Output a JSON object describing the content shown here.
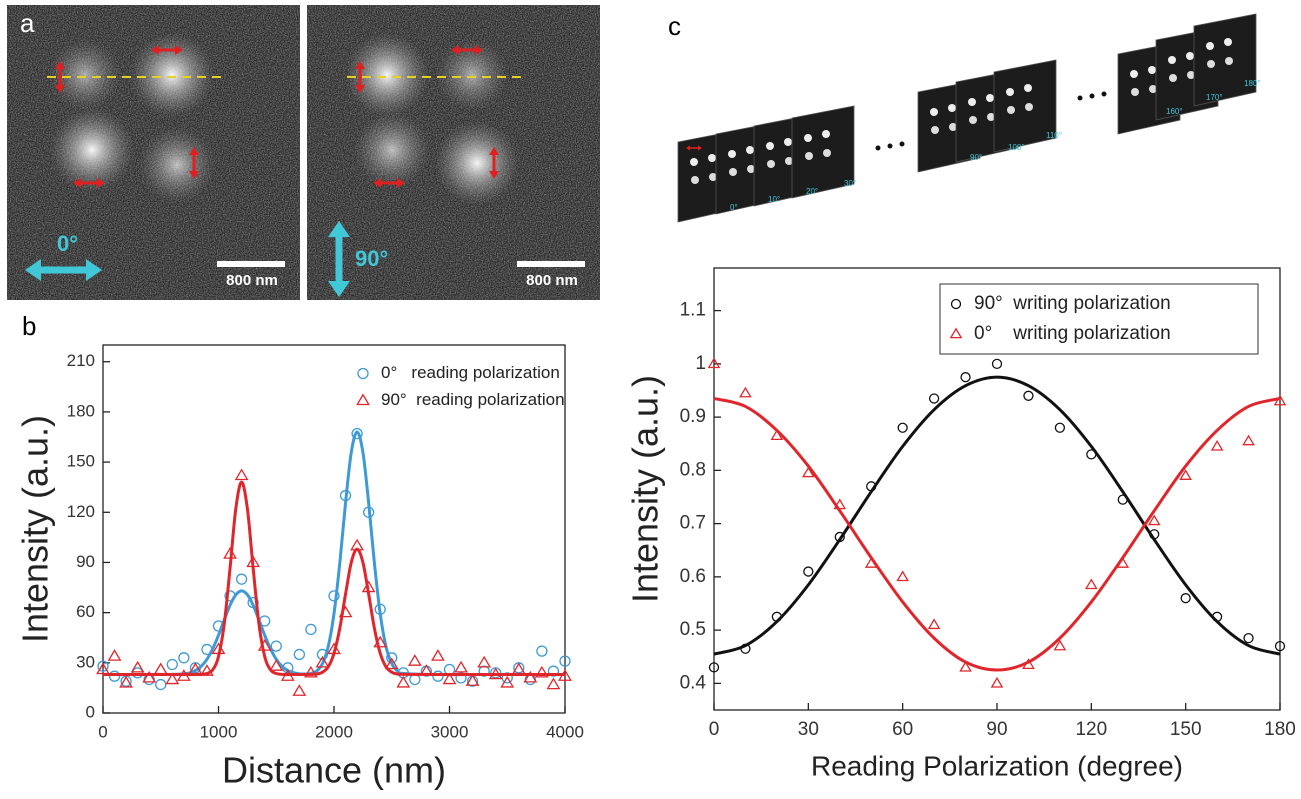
{
  "panels": [
    "a",
    "b",
    "c"
  ],
  "images": [
    {
      "angle": "0°",
      "scale": "800 nm"
    },
    {
      "angle": "90°",
      "scale": "800 nm"
    }
  ],
  "frames": [
    "0°",
    "10°",
    "20°",
    "30°",
    "90°",
    "100°",
    "110°",
    "160°",
    "170°",
    "180°"
  ],
  "chart_data": [
    {
      "type": "scatter",
      "xlabel": "Distance (nm)",
      "ylabel": "Intensity (a.u.)",
      "xlim": [
        0,
        4000
      ],
      "xticks": [
        0,
        1000,
        2000,
        3000,
        4000
      ],
      "ylim": [
        0,
        220
      ],
      "yticks": [
        0,
        30,
        60,
        90,
        120,
        150,
        180,
        210
      ],
      "legend": "upper right",
      "series": [
        {
          "name": "0°   reading polarization",
          "color": "#3d9ad6",
          "marker": "circle",
          "x": [
            0,
            100,
            200,
            300,
            400,
            500,
            600,
            700,
            800,
            900,
            1000,
            1100,
            1200,
            1300,
            1400,
            1500,
            1600,
            1700,
            1800,
            1900,
            2000,
            2100,
            2200,
            2300,
            2400,
            2500,
            2600,
            2700,
            2800,
            2900,
            3000,
            3100,
            3200,
            3300,
            3400,
            3500,
            3600,
            3700,
            3800,
            3900,
            4000
          ],
          "values": [
            28,
            22,
            19,
            24,
            20,
            17,
            29,
            33,
            27,
            38,
            52,
            70,
            80,
            66,
            55,
            40,
            27,
            35,
            50,
            35,
            70,
            130,
            167,
            120,
            62,
            33,
            24,
            20,
            25,
            22,
            26,
            21,
            19,
            25,
            24,
            21,
            27,
            20,
            37,
            25,
            31
          ],
          "fit": {
            "x": [
              0,
              400,
              700,
              800,
              850,
              900,
              950,
              1000,
              1050,
              1100,
              1150,
              1200,
              1250,
              1300,
              1350,
              1400,
              1450,
              1500,
              1550,
              1600,
              1650,
              1700,
              1750,
              1800,
              1850,
              1900,
              1950,
              2000,
              2050,
              2100,
              2150,
              2200,
              2250,
              2300,
              2350,
              2400,
              2450,
              2500,
              2550,
              2600,
              2900,
              3300,
              4000
            ],
            "values": [
              23,
              23,
              23.4,
              25.4,
              27.9,
              32.1,
              38.4,
              46.5,
              55.7,
              64.4,
              70.7,
              73,
              70.7,
              64.4,
              55.7,
              46.5,
              38.4,
              32.1,
              27.9,
              25.4,
              24.1,
              23.4,
              23.3,
              23.6,
              25.1,
              29.5,
              39.7,
              59.4,
              89.5,
              125.6,
              156,
              168,
              156,
              125.6,
              89.5,
              59.4,
              39.7,
              29.5,
              25.1,
              23.6,
              23,
              23,
              23
            ]
          }
        },
        {
          "name": "90°  reading polarization",
          "color": "#e0262b",
          "marker": "triangle",
          "x": [
            0,
            100,
            200,
            300,
            400,
            500,
            600,
            700,
            800,
            900,
            1000,
            1100,
            1200,
            1300,
            1400,
            1500,
            1600,
            1700,
            1800,
            1900,
            2000,
            2100,
            2200,
            2300,
            2400,
            2500,
            2600,
            2700,
            2800,
            2900,
            3000,
            3100,
            3200,
            3300,
            3400,
            3500,
            3600,
            3700,
            3800,
            3900,
            4000
          ],
          "values": [
            26,
            34,
            18,
            27,
            21,
            26,
            20,
            22,
            26,
            25,
            38,
            95,
            142,
            90,
            40,
            28,
            22,
            13,
            24,
            30,
            38,
            60,
            100,
            75,
            42,
            29,
            18,
            31,
            25,
            34,
            20,
            27,
            19,
            30,
            23,
            18,
            26,
            21,
            24,
            17,
            22
          ],
          "fit": {
            "x": [
              0,
              400,
              700,
              800,
              850,
              900,
              950,
              1000,
              1050,
              1100,
              1150,
              1200,
              1250,
              1300,
              1350,
              1400,
              1450,
              1500,
              1550,
              1600,
              1650,
              1700,
              1750,
              1800,
              1850,
              1900,
              1950,
              2000,
              2050,
              2100,
              2150,
              2200,
              2250,
              2300,
              2350,
              2400,
              2450,
              2500,
              2550,
              2600,
              2900,
              3300,
              4000
            ],
            "values": [
              23,
              23,
              23,
              23,
              23.1,
              23.6,
              25.8,
              33.8,
              53.4,
              86.6,
              122.2,
              138,
              122.2,
              86.6,
              53.4,
              33.8,
              25.8,
              23.6,
              23.1,
              23,
              23,
              23,
              23,
              23.1,
              23.3,
              24.4,
              27.6,
              35.7,
              50.6,
              71.1,
              90.1,
              98,
              90.1,
              71.1,
              50.6,
              35.7,
              27.6,
              24.4,
              23.3,
              23.1,
              23,
              23,
              23
            ]
          }
        }
      ]
    },
    {
      "type": "scatter",
      "xlabel": "Reading Polarization (degree)",
      "ylabel": "Intensity (a.u.)",
      "xlim": [
        0,
        180
      ],
      "xticks": [
        0,
        30,
        60,
        90,
        120,
        150,
        180
      ],
      "ylim": [
        0.35,
        1.18
      ],
      "yticks": [
        0.4,
        0.5,
        0.6,
        0.7,
        0.8,
        0.9,
        1.0,
        1.1
      ],
      "legend": "upper right",
      "series": [
        {
          "name": "90°  writing polarization",
          "color": "#111111",
          "marker": "circle",
          "x": [
            0,
            10,
            20,
            30,
            40,
            50,
            60,
            70,
            80,
            90,
            100,
            110,
            120,
            130,
            140,
            150,
            160,
            170,
            180
          ],
          "values": [
            0.43,
            0.465,
            0.525,
            0.61,
            0.675,
            0.77,
            0.88,
            0.935,
            0.975,
            1.0,
            0.94,
            0.88,
            0.83,
            0.745,
            0.68,
            0.56,
            0.525,
            0.485,
            0.47
          ],
          "fit": {
            "x": [
              0,
              10,
              20,
              30,
              40,
              50,
              60,
              70,
              80,
              90,
              100,
              110,
              120,
              130,
              140,
              150,
              160,
              170,
              180
            ],
            "values": [
              0.455,
              0.471,
              0.516,
              0.585,
              0.67,
              0.76,
              0.845,
              0.914,
              0.959,
              0.975,
              0.959,
              0.914,
              0.845,
              0.76,
              0.67,
              0.585,
              0.516,
              0.471,
              0.455
            ]
          }
        },
        {
          "name": "0°    writing polarization",
          "color": "#e0262b",
          "marker": "triangle",
          "x": [
            0,
            10,
            20,
            30,
            40,
            50,
            60,
            70,
            80,
            90,
            100,
            110,
            120,
            130,
            140,
            150,
            160,
            170,
            180
          ],
          "values": [
            1.0,
            0.945,
            0.865,
            0.795,
            0.735,
            0.625,
            0.6,
            0.51,
            0.43,
            0.4,
            0.435,
            0.47,
            0.585,
            0.625,
            0.705,
            0.79,
            0.845,
            0.855,
            0.93
          ],
          "fit": {
            "x": [
              0,
              10,
              20,
              30,
              40,
              50,
              60,
              70,
              80,
              90,
              100,
              110,
              120,
              130,
              140,
              150,
              160,
              170,
              180
            ],
            "values": [
              0.935,
              0.92,
              0.875,
              0.808,
              0.724,
              0.636,
              0.553,
              0.485,
              0.44,
              0.425,
              0.44,
              0.485,
              0.553,
              0.636,
              0.724,
              0.808,
              0.875,
              0.92,
              0.935
            ]
          }
        }
      ]
    }
  ]
}
